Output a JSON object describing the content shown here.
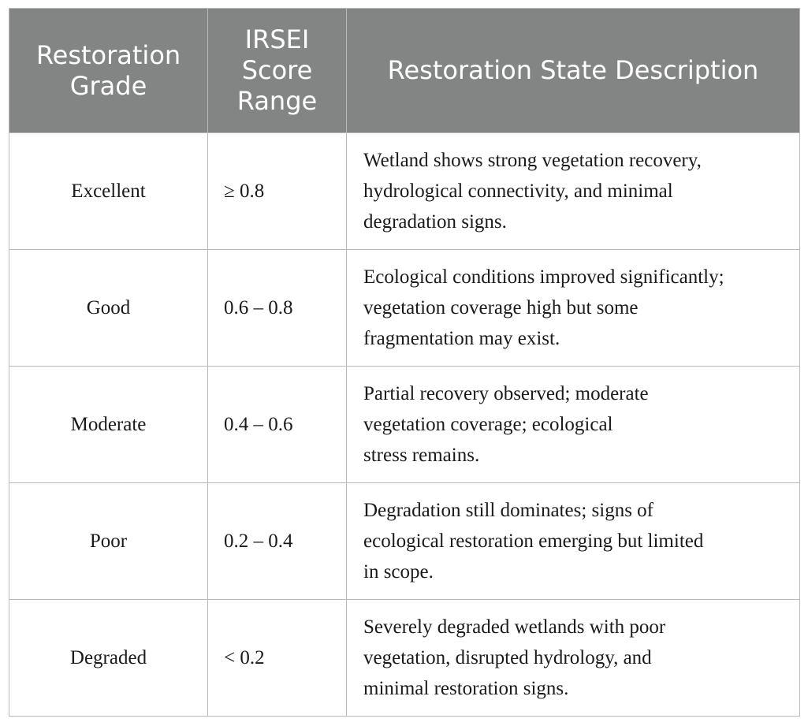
{
  "table": {
    "headers": [
      [
        "Restoration",
        "Grade"
      ],
      [
        "IRSEI",
        "Score",
        "Range"
      ],
      [
        "Restoration State Description"
      ]
    ],
    "rows": [
      {
        "grade": "Excellent",
        "range": "≥ 0.8",
        "description": [
          "Wetland shows strong vegetation recovery,",
          "hydrological connectivity, and minimal",
          "degradation signs."
        ]
      },
      {
        "grade": "Good",
        "range": "0.6 – 0.8",
        "description": [
          "Ecological conditions improved significantly;",
          "vegetation coverage high but some",
          "fragmentation may exist."
        ]
      },
      {
        "grade": "Moderate",
        "range": "0.4 – 0.6",
        "description": [
          "Partial recovery observed; moderate",
          "vegetation coverage; ecological",
          "stress remains."
        ]
      },
      {
        "grade": "Poor",
        "range": "0.2 – 0.4",
        "description": [
          "Degradation still dominates; signs of",
          "ecological restoration emerging but limited",
          "in scope."
        ]
      },
      {
        "grade": "Degraded",
        "range": "< 0.2",
        "description": [
          "Severely degraded wetlands with poor",
          "vegetation, disrupted hydrology, and",
          "minimal restoration signs."
        ]
      }
    ]
  },
  "colors": {
    "header_background": "#838584",
    "header_text": "#ffffff",
    "grid_line": "#b9b9b9",
    "body_text": "#1a1a1a"
  }
}
